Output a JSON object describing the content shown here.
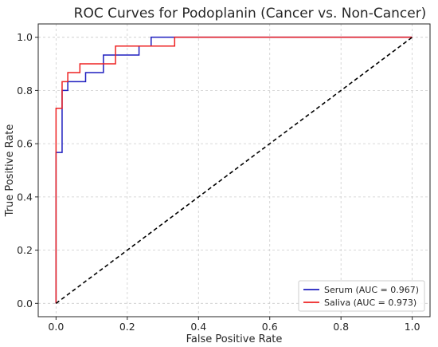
{
  "chart_data": {
    "type": "line",
    "title": "ROC Curves for Podoplanin (Cancer vs. Non-Cancer)",
    "xlabel": "False Positive Rate",
    "ylabel": "True Positive Rate",
    "xlim": [
      -0.05,
      1.05
    ],
    "ylim": [
      -0.05,
      1.05
    ],
    "xticks": [
      0.0,
      0.2,
      0.4,
      0.6,
      0.8,
      1.0
    ],
    "yticks": [
      0.0,
      0.2,
      0.4,
      0.6,
      0.8,
      1.0
    ],
    "xtick_labels": [
      "0.0",
      "0.2",
      "0.4",
      "0.6",
      "0.8",
      "1.0"
    ],
    "ytick_labels": [
      "0.0",
      "0.2",
      "0.4",
      "0.6",
      "0.8",
      "1.0"
    ],
    "grid": true,
    "legend_position": "bottom-right",
    "series": [
      {
        "name": "Serum (AUC = 0.967)",
        "color": "#1f1fbf",
        "x": [
          0,
          0,
          0.0,
          0.017,
          0.017,
          0.033,
          0.033,
          0.083,
          0.083,
          0.133,
          0.133,
          0.233,
          0.233,
          0.267,
          0.267,
          1.0
        ],
        "y": [
          0,
          0.567,
          0.567,
          0.567,
          0.8,
          0.8,
          0.833,
          0.833,
          0.867,
          0.867,
          0.933,
          0.933,
          0.967,
          0.967,
          1.0,
          1.0
        ]
      },
      {
        "name": "Saliva (AUC = 0.973)",
        "color": "#ee2222",
        "x": [
          0,
          0,
          0.017,
          0.017,
          0.033,
          0.033,
          0.067,
          0.067,
          0.167,
          0.167,
          0.333,
          0.333,
          1.0
        ],
        "y": [
          0,
          0.733,
          0.733,
          0.833,
          0.833,
          0.867,
          0.867,
          0.9,
          0.9,
          0.967,
          0.967,
          1.0,
          1.0
        ]
      },
      {
        "name": "",
        "color": "#000000",
        "dashed": true,
        "x": [
          0,
          1
        ],
        "y": [
          0,
          1
        ]
      }
    ]
  }
}
